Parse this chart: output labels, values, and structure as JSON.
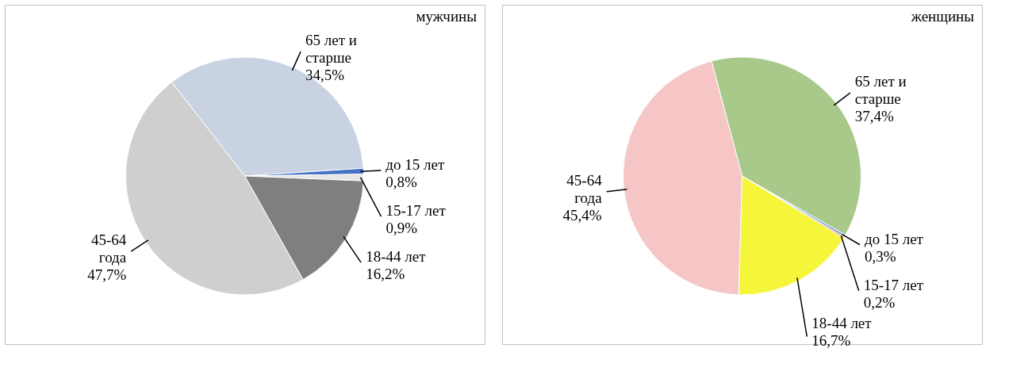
{
  "chart_data": [
    {
      "type": "pie",
      "title": "мужчины",
      "categories": [
        "65 лет и старше",
        "до 15 лет",
        "15-17 лет",
        "18-44 лет",
        "45-64 года"
      ],
      "values": [
        34.5,
        0.8,
        0.9,
        16.2,
        47.7
      ],
      "value_labels": [
        "34,5%",
        "0,8%",
        "0,9%",
        "16,2%",
        "47,7%"
      ],
      "colors": [
        "#c8d2e2",
        "#4472c4",
        "#e6e6e6",
        "#7f7f7f",
        "#cfcfcf"
      ],
      "legend": false
    },
    {
      "type": "pie",
      "title": "женщины",
      "categories": [
        "65 лет и старше",
        "до 15 лет",
        "15-17 лет",
        "18-44 лет",
        "45-64 года"
      ],
      "values": [
        37.4,
        0.3,
        0.2,
        16.7,
        45.4
      ],
      "value_labels": [
        "37,4%",
        "0,3%",
        "0,2%",
        "16,7%",
        "45,4%"
      ],
      "colors": [
        "#a8c98a",
        "#5b9bd5",
        "#ed7d31",
        "#f5f53a",
        "#f6c6c6"
      ],
      "legend": false
    }
  ]
}
